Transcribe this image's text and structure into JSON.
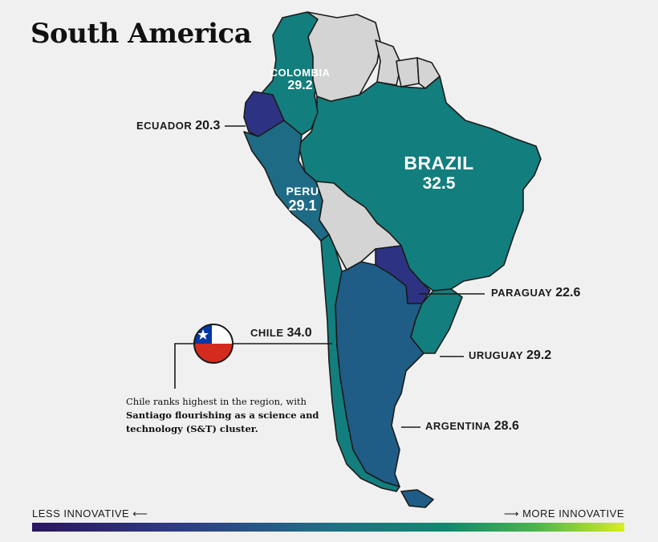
{
  "title": "South America",
  "colors": {
    "background": "#f0f0f0",
    "no_data": "#d4d4d4",
    "teal": "#137e7e",
    "teal_dark": "#1e6b86",
    "steel_blue": "#1f5c86",
    "indigo": "#2d3382",
    "scale": [
      "#2a1560",
      "#2f3b86",
      "#1f6f86",
      "#0f8a6e",
      "#49b54e",
      "#d8ee1e"
    ]
  },
  "countries": {
    "brazil": {
      "name": "BRAZIL",
      "value": "32.5"
    },
    "colombia": {
      "name": "COLOMBIA",
      "value": "29.2"
    },
    "ecuador": {
      "name": "ECUADOR",
      "value": "20.3"
    },
    "peru": {
      "name": "PERU",
      "value": "29.1"
    },
    "chile": {
      "name": "CHILE",
      "value": "34.0"
    },
    "paraguay": {
      "name": "PARAGUAY",
      "value": "22.6"
    },
    "uruguay": {
      "name": "URUGUAY",
      "value": "29.2"
    },
    "argentina": {
      "name": "ARGENTINA",
      "value": "28.6"
    }
  },
  "flag_icon": "chile-flag-icon",
  "note": {
    "line1": "Chile ranks highest in the region, with",
    "bold": "Santiago flourishing as a science and",
    "line3": "technology (S&T) cluster."
  },
  "legend": {
    "less": "LESS INNOVATIVE ⟵",
    "more": "⟶ MORE INNOVATIVE"
  }
}
